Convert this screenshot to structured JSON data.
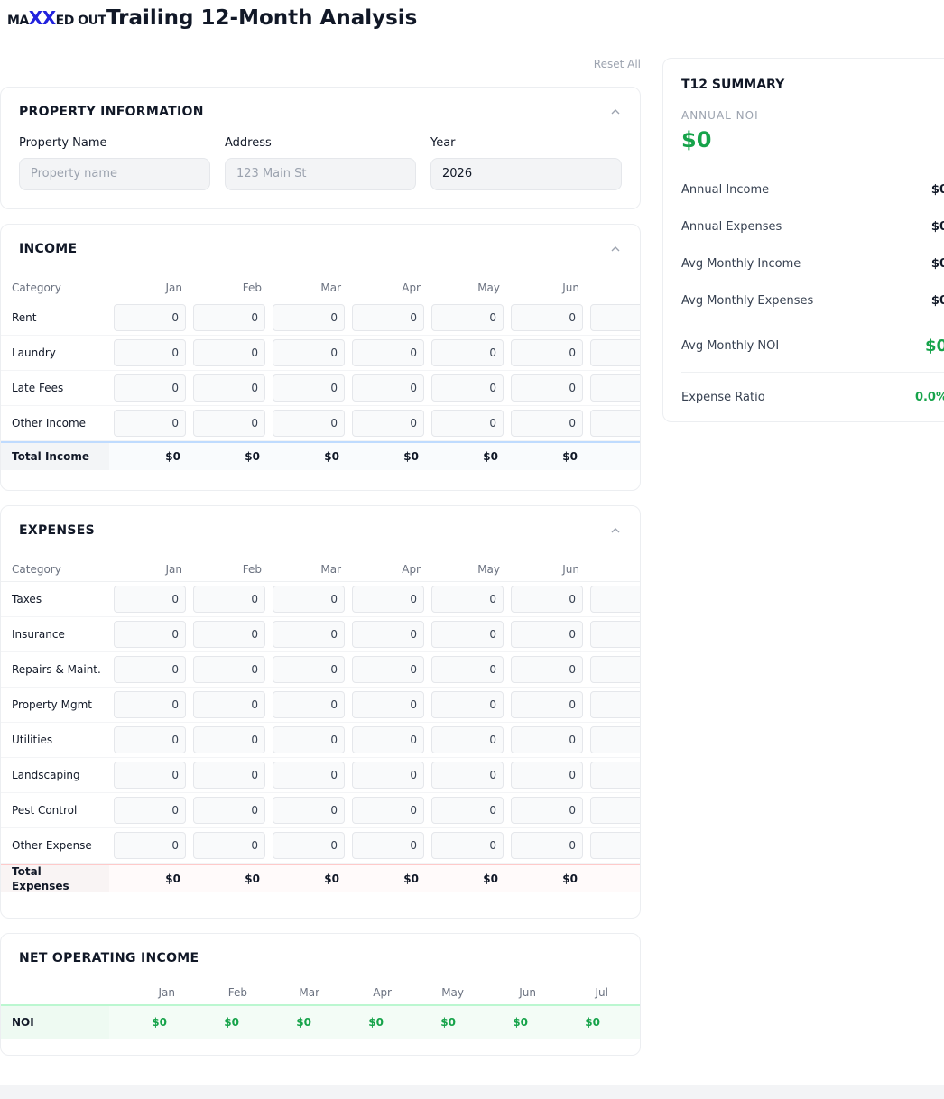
{
  "header": {
    "logo": [
      "MA",
      "XX",
      "ED OUT"
    ],
    "title": "Trailing 12-Month Analysis"
  },
  "reset": "Reset All",
  "property": {
    "title": "PROPERTY INFORMATION",
    "fields": [
      {
        "label": "Property Name",
        "placeholder": "Property name"
      },
      {
        "label": "Address",
        "placeholder": "123 Main St"
      },
      {
        "label": "Year",
        "value": "2026"
      }
    ]
  },
  "income": {
    "title": "INCOME",
    "columns": [
      "Category",
      "Jan",
      "Feb",
      "Mar",
      "Apr",
      "May",
      "Jun"
    ],
    "rows": [
      {
        "name": "Rent",
        "values": [
          0,
          0,
          0,
          0,
          0,
          0
        ]
      },
      {
        "name": "Laundry",
        "values": [
          0,
          0,
          0,
          0,
          0,
          0
        ]
      },
      {
        "name": "Late Fees",
        "values": [
          0,
          0,
          0,
          0,
          0,
          0
        ]
      },
      {
        "name": "Other Income",
        "values": [
          0,
          0,
          0,
          0,
          0,
          0
        ]
      }
    ],
    "total": {
      "name": "Total Income",
      "values": [
        "$0",
        "$0",
        "$0",
        "$0",
        "$0",
        "$0"
      ]
    }
  },
  "expenses": {
    "title": "EXPENSES",
    "columns": [
      "Category",
      "Jan",
      "Feb",
      "Mar",
      "Apr",
      "May",
      "Jun"
    ],
    "rows": [
      {
        "name": "Taxes",
        "values": [
          0,
          0,
          0,
          0,
          0,
          0
        ]
      },
      {
        "name": "Insurance",
        "values": [
          0,
          0,
          0,
          0,
          0,
          0
        ]
      },
      {
        "name": "Repairs & Maint.",
        "values": [
          0,
          0,
          0,
          0,
          0,
          0
        ]
      },
      {
        "name": "Property Mgmt",
        "values": [
          0,
          0,
          0,
          0,
          0,
          0
        ]
      },
      {
        "name": "Utilities",
        "values": [
          0,
          0,
          0,
          0,
          0,
          0
        ]
      },
      {
        "name": "Landscaping",
        "values": [
          0,
          0,
          0,
          0,
          0,
          0
        ]
      },
      {
        "name": "Pest Control",
        "values": [
          0,
          0,
          0,
          0,
          0,
          0
        ]
      },
      {
        "name": "Other Expense",
        "values": [
          0,
          0,
          0,
          0,
          0,
          0
        ]
      }
    ],
    "total": {
      "name": "Total Expenses",
      "values": [
        "$0",
        "$0",
        "$0",
        "$0",
        "$0",
        "$0"
      ]
    }
  },
  "noi": {
    "title": "NET OPERATING INCOME",
    "columns": [
      "Jan",
      "Feb",
      "Mar",
      "Apr",
      "May",
      "Jun",
      "Jul"
    ],
    "row": {
      "name": "NOI",
      "values": [
        "$0",
        "$0",
        "$0",
        "$0",
        "$0",
        "$0",
        "$0"
      ]
    }
  },
  "summary": {
    "title": "T12 SUMMARY",
    "headline": {
      "label": "ANNUAL NOI",
      "value": "$0"
    },
    "rows": [
      {
        "label": "Annual Income",
        "value": "$0"
      },
      {
        "label": "Annual Expenses",
        "value": "$0"
      },
      {
        "label": "Avg Monthly Income",
        "value": "$0"
      },
      {
        "label": "Avg Monthly Expenses",
        "value": "$0"
      },
      {
        "label": "Avg Monthly NOI",
        "value": "$0"
      },
      {
        "label": "Expense Ratio",
        "value": "0.0%"
      }
    ]
  }
}
